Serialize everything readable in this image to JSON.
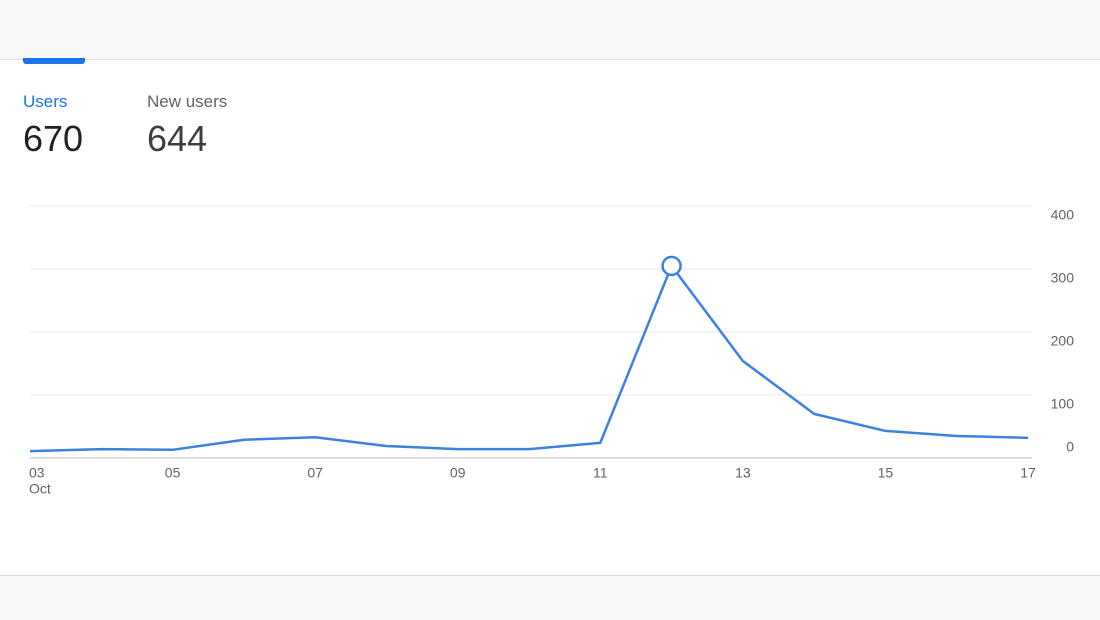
{
  "metrics": [
    {
      "label": "Users",
      "value": "670"
    },
    {
      "label": "New users",
      "value": "644"
    }
  ],
  "chart_data": {
    "type": "line",
    "categories": [
      "03",
      null,
      "05",
      null,
      "07",
      null,
      "09",
      null,
      "11",
      null,
      "13",
      null,
      "15",
      null,
      "17"
    ],
    "category_sublabel": "Oct",
    "values": [
      11,
      14,
      13,
      29,
      33,
      19,
      14,
      14,
      24,
      305,
      154,
      70,
      43,
      35,
      32
    ],
    "color": "#3b82e0",
    "highlight_index": 9,
    "ylim": [
      0,
      400
    ],
    "yticks": [
      0,
      100,
      200,
      300,
      400
    ],
    "grid": true
  }
}
